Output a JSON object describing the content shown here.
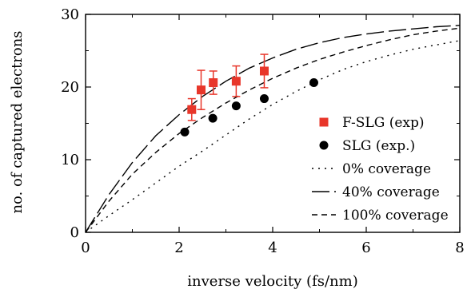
{
  "chart_data": {
    "type": "scatter",
    "xlabel": "inverse velocity (fs/nm)",
    "ylabel": "no. of captured electrons",
    "xlim": [
      0,
      8
    ],
    "ylim": [
      0,
      30
    ],
    "xticks": [
      0,
      2,
      4,
      6,
      8
    ],
    "yticks": [
      0,
      10,
      20,
      30
    ],
    "grid": false,
    "legend_position": "lower-right",
    "series": [
      {
        "name": "F-SLG (exp)",
        "kind": "points",
        "marker": "square",
        "color": "#e8362a",
        "points": [
          {
            "x": 2.27,
            "y": 16.9,
            "err": 1.5
          },
          {
            "x": 2.47,
            "y": 19.6,
            "err": 2.7
          },
          {
            "x": 2.73,
            "y": 20.6,
            "err": 1.6
          },
          {
            "x": 3.22,
            "y": 20.8,
            "err": 2.1
          },
          {
            "x": 3.82,
            "y": 22.2,
            "err": 2.3
          }
        ]
      },
      {
        "name": "SLG (exp.)",
        "kind": "points",
        "marker": "circle",
        "color": "#000000",
        "points": [
          {
            "x": 2.12,
            "y": 13.8
          },
          {
            "x": 2.72,
            "y": 15.7
          },
          {
            "x": 3.22,
            "y": 17.4
          },
          {
            "x": 3.82,
            "y": 18.4
          },
          {
            "x": 4.88,
            "y": 20.6
          }
        ]
      },
      {
        "name": "0% coverage",
        "kind": "curve",
        "dash": "dotted",
        "color": "#000000",
        "x": [
          0,
          0.5,
          1,
          1.5,
          2,
          2.5,
          3,
          3.5,
          4,
          4.5,
          5,
          5.5,
          6,
          6.5,
          7,
          7.5,
          8
        ],
        "y": [
          0,
          2.3,
          4.5,
          6.8,
          9.1,
          11.2,
          13.4,
          15.6,
          17.6,
          19.4,
          21.0,
          22.4,
          23.5,
          24.4,
          25.2,
          25.8,
          26.4
        ]
      },
      {
        "name": "40% coverage",
        "kind": "curve",
        "dash": "long-dash",
        "color": "#000000",
        "x": [
          0,
          0.5,
          1,
          1.5,
          2,
          2.5,
          3,
          3.5,
          4,
          4.5,
          5,
          5.5,
          6,
          6.5,
          7,
          7.5,
          8
        ],
        "y": [
          0,
          5.2,
          9.6,
          13.3,
          16.2,
          18.7,
          20.8,
          22.6,
          24.0,
          25.2,
          26.1,
          26.8,
          27.3,
          27.7,
          28.0,
          28.3,
          28.5
        ]
      },
      {
        "name": "100% coverage",
        "kind": "curve",
        "dash": "dashed",
        "color": "#000000",
        "x": [
          0,
          0.5,
          1,
          1.5,
          2,
          2.5,
          3,
          3.5,
          4,
          4.5,
          5,
          5.5,
          6,
          6.5,
          7,
          7.5,
          8
        ],
        "y": [
          0,
          4.3,
          8.0,
          11.0,
          13.6,
          15.8,
          17.8,
          19.6,
          21.2,
          22.6,
          23.8,
          24.8,
          25.7,
          26.5,
          27.2,
          27.7,
          28.1
        ]
      }
    ]
  }
}
